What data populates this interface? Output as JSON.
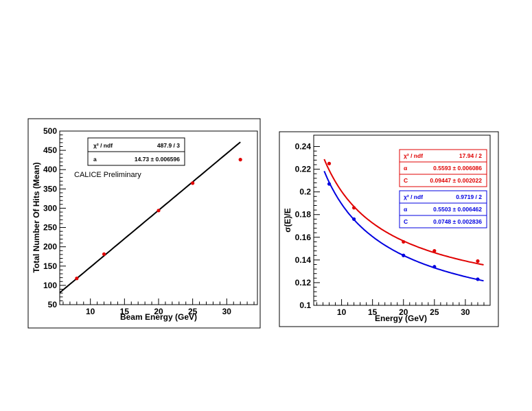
{
  "chart_data": [
    {
      "type": "scatter",
      "xlabel": "Beam Energy (GeV)",
      "ylabel": "Total Number Of Hits (Mean)",
      "xlim": [
        5.5,
        34.5
      ],
      "ylim": [
        50,
        500
      ],
      "x_ticks": [
        10,
        15,
        20,
        25,
        30
      ],
      "y_ticks": [
        50,
        100,
        150,
        200,
        250,
        300,
        350,
        400,
        450,
        500
      ],
      "annotation": "CALICE Preliminary",
      "series": [
        {
          "color": "#e00000",
          "x": [
            8,
            12,
            20,
            25,
            32
          ],
          "y": [
            118,
            181,
            294,
            365,
            426
          ]
        }
      ],
      "fit": {
        "color": "#000000",
        "slope": 14.73,
        "x_range": [
          5.5,
          32
        ]
      },
      "stats_box": {
        "rows": [
          {
            "label": "χ² / ndf",
            "value": "487.9 / 3"
          },
          {
            "label": "a",
            "value": "14.73 ± 0.006596"
          }
        ]
      }
    },
    {
      "type": "scatter",
      "xlabel": "Energy (GeV)",
      "ylabel": "σ(E)/E",
      "xlim": [
        5.5,
        34
      ],
      "ylim": [
        0.1,
        0.25
      ],
      "x_ticks": [
        10,
        15,
        20,
        25,
        30
      ],
      "y_ticks": [
        0.1,
        0.12,
        0.14,
        0.16,
        0.18,
        0.2,
        0.22,
        0.24
      ],
      "series": [
        {
          "color": "#e00000",
          "x": [
            8,
            12,
            20,
            25,
            32
          ],
          "y": [
            0.225,
            0.186,
            0.156,
            0.148,
            0.139
          ]
        },
        {
          "color": "#0000e0",
          "x": [
            8,
            12,
            20,
            25,
            32
          ],
          "y": [
            0.207,
            0.176,
            0.144,
            0.134,
            0.123
          ]
        }
      ],
      "fits": [
        {
          "color": "#e00000",
          "a": 0.5593,
          "c": 0.09447,
          "x_range": [
            7.2,
            33
          ]
        },
        {
          "color": "#0000e0",
          "a": 0.5503,
          "c": 0.0748,
          "x_range": [
            7.2,
            33
          ]
        }
      ],
      "stats_boxes": [
        {
          "color": "#e00000",
          "rows": [
            {
              "label": "χ² / ndf",
              "value": "17.94 / 2"
            },
            {
              "label": "α",
              "value": "0.5593 ± 0.006086"
            },
            {
              "label": "C",
              "value": "0.09447 ± 0.002022"
            }
          ]
        },
        {
          "color": "#0000e0",
          "rows": [
            {
              "label": "χ² / ndf",
              "value": "0.9719 / 2"
            },
            {
              "label": "α",
              "value": "0.5503 ± 0.006462"
            },
            {
              "label": "C",
              "value": "0.0748 ± 0.002836"
            }
          ]
        }
      ]
    }
  ]
}
